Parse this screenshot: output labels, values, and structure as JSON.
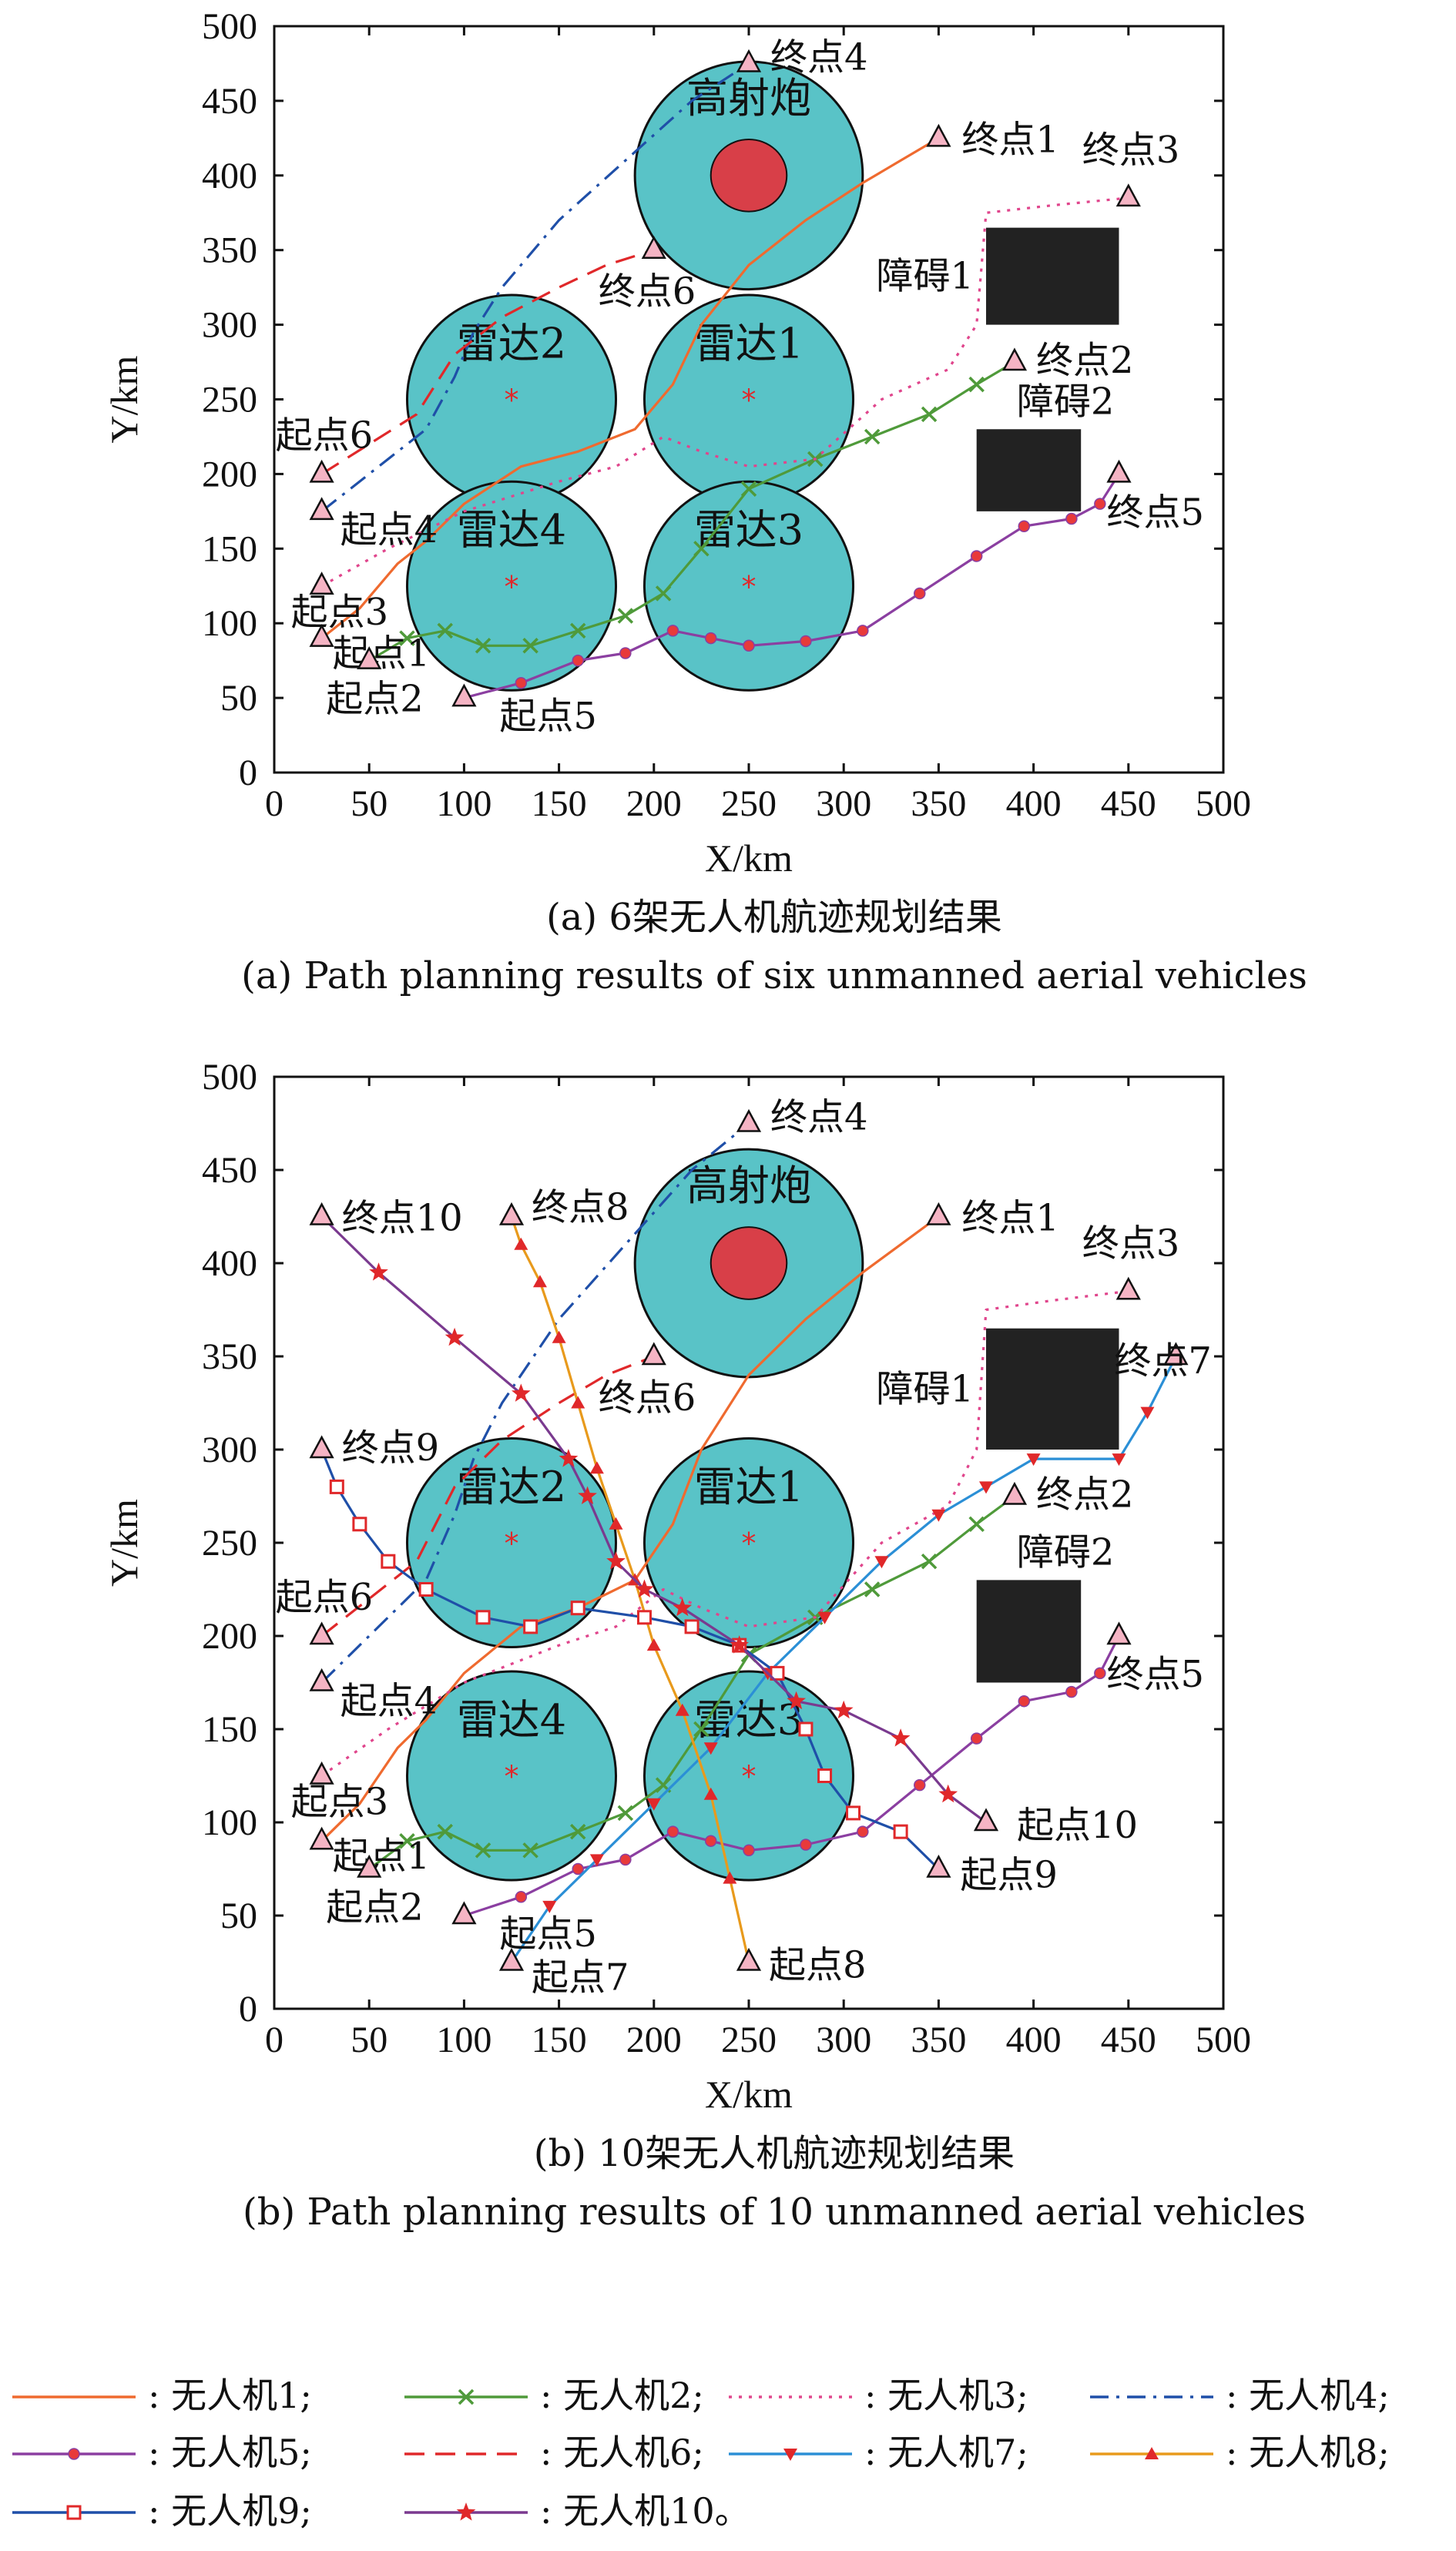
{
  "colors": {
    "zone_fill": "#59c3c7",
    "zone_stroke": "#111111",
    "aa_core": "#d83f48",
    "obstacle": "#222222",
    "marker_fill": "#f5b4c4"
  },
  "legend": [
    {
      "label": ": 无人机1;",
      "color": "#ef6a2f",
      "dash": "",
      "marker": "none"
    },
    {
      "label": ": 无人机2;",
      "color": "#4f9a3a",
      "dash": "",
      "marker": "x"
    },
    {
      "label": ": 无人机3;",
      "color": "#e0458c",
      "dash": "dot",
      "marker": "none"
    },
    {
      "label": ": 无人机4;",
      "color": "#1f4fa8",
      "dash": "dashdot",
      "marker": "none"
    },
    {
      "label": ": 无人机5;",
      "color": "#8b3fa1",
      "dash": "",
      "marker": "circle"
    },
    {
      "label": ": 无人机6;",
      "color": "#e0282a",
      "dash": "dash",
      "marker": "none"
    },
    {
      "label": ": 无人机7;",
      "color": "#2b8fd6",
      "dash": "",
      "marker": "tri-down"
    },
    {
      "label": ": 无人机8;",
      "color": "#e89a1c",
      "dash": "",
      "marker": "tri-up"
    },
    {
      "label": ": 无人机9;",
      "color": "#1f4fa8",
      "dash": "",
      "marker": "square"
    },
    {
      "label": ": 无人机10。",
      "color": "#7a3a8f",
      "dash": "",
      "marker": "star"
    }
  ],
  "chart_data": [
    {
      "type": "line",
      "xlabel": "X/km",
      "ylabel": "Y/km",
      "xlim": [
        0,
        500
      ],
      "ylim": [
        0,
        500
      ],
      "xticks": [
        0,
        50,
        100,
        150,
        200,
        250,
        300,
        350,
        400,
        450,
        500
      ],
      "yticks": [
        0,
        50,
        100,
        150,
        200,
        250,
        300,
        350,
        400,
        450,
        500
      ],
      "caption_cn": "(a) 6架无人机航迹规划结果",
      "caption_en": "(a) Path planning results of six unmanned aerial vehicles",
      "threat_zones": [
        {
          "label": "高射炮",
          "cx": 250,
          "cy": 400,
          "r": 60,
          "core_r": 20,
          "kind": "aa"
        },
        {
          "label": "雷达2",
          "cx": 125,
          "cy": 250,
          "r": 55,
          "kind": "radar"
        },
        {
          "label": "雷达1",
          "cx": 250,
          "cy": 250,
          "r": 55,
          "kind": "radar"
        },
        {
          "label": "雷达4",
          "cx": 125,
          "cy": 125,
          "r": 55,
          "kind": "radar"
        },
        {
          "label": "雷达3",
          "cx": 250,
          "cy": 125,
          "r": 55,
          "kind": "radar"
        }
      ],
      "obstacles": [
        {
          "label": "障碍1",
          "x0": 375,
          "x1": 445,
          "y0": 300,
          "y1": 365
        },
        {
          "label": "障碍2",
          "x0": 370,
          "x1": 425,
          "y0": 175,
          "y1": 230
        }
      ],
      "points": [
        {
          "label": "终点4",
          "x": 250,
          "y": 475
        },
        {
          "label": "终点1",
          "x": 350,
          "y": 425
        },
        {
          "label": "终点3",
          "x": 450,
          "y": 385
        },
        {
          "label": "终点6",
          "x": 200,
          "y": 350
        },
        {
          "label": "终点2",
          "x": 390,
          "y": 275
        },
        {
          "label": "终点5",
          "x": 445,
          "y": 200
        },
        {
          "label": "起点6",
          "x": 25,
          "y": 200
        },
        {
          "label": "起点4",
          "x": 25,
          "y": 175
        },
        {
          "label": "起点3",
          "x": 25,
          "y": 125
        },
        {
          "label": "起点1",
          "x": 25,
          "y": 90
        },
        {
          "label": "起点2",
          "x": 50,
          "y": 75
        },
        {
          "label": "起点5",
          "x": 100,
          "y": 50
        }
      ],
      "series": [
        {
          "name": "无人机1",
          "x": [
            25,
            45,
            65,
            80,
            100,
            130,
            160,
            190,
            210,
            225,
            250,
            280,
            310,
            330,
            350
          ],
          "y": [
            90,
            110,
            140,
            155,
            180,
            205,
            215,
            230,
            260,
            300,
            340,
            370,
            395,
            410,
            425
          ]
        },
        {
          "name": "无人机2",
          "x": [
            50,
            70,
            90,
            110,
            135,
            160,
            185,
            205,
            225,
            250,
            285,
            315,
            345,
            370,
            390
          ],
          "y": [
            75,
            90,
            95,
            85,
            85,
            95,
            105,
            120,
            150,
            190,
            210,
            225,
            240,
            260,
            275
          ]
        },
        {
          "name": "无人机3",
          "x": [
            25,
            60,
            100,
            150,
            180,
            205,
            225,
            250,
            285,
            320,
            355,
            370,
            375,
            410,
            450
          ],
          "y": [
            125,
            150,
            175,
            195,
            205,
            225,
            215,
            205,
            210,
            250,
            270,
            300,
            375,
            380,
            385
          ]
        },
        {
          "name": "无人机4",
          "x": [
            25,
            55,
            80,
            95,
            105,
            120,
            150,
            185,
            220,
            250
          ],
          "y": [
            175,
            205,
            230,
            265,
            295,
            325,
            370,
            410,
            450,
            475
          ]
        },
        {
          "name": "无人机5",
          "x": [
            100,
            130,
            160,
            185,
            210,
            230,
            250,
            280,
            310,
            340,
            370,
            395,
            420,
            435,
            445
          ],
          "y": [
            50,
            60,
            75,
            80,
            95,
            90,
            85,
            88,
            95,
            120,
            145,
            165,
            170,
            180,
            200
          ]
        },
        {
          "name": "无人机6",
          "x": [
            25,
            50,
            75,
            95,
            120,
            150,
            175,
            200
          ],
          "y": [
            200,
            220,
            240,
            280,
            305,
            325,
            340,
            350
          ]
        }
      ]
    },
    {
      "type": "line",
      "xlabel": "X/km",
      "ylabel": "Y/km",
      "xlim": [
        0,
        500
      ],
      "ylim": [
        0,
        500
      ],
      "xticks": [
        0,
        50,
        100,
        150,
        200,
        250,
        300,
        350,
        400,
        450,
        500
      ],
      "yticks": [
        0,
        50,
        100,
        150,
        200,
        250,
        300,
        350,
        400,
        450,
        500
      ],
      "caption_cn": "(b) 10架无人机航迹规划结果",
      "caption_en": "(b) Path planning results of 10 unmanned aerial vehicles",
      "threat_zones": [
        {
          "label": "高射炮",
          "cx": 250,
          "cy": 400,
          "r": 60,
          "core_r": 20,
          "kind": "aa"
        },
        {
          "label": "雷达2",
          "cx": 125,
          "cy": 250,
          "r": 55,
          "kind": "radar"
        },
        {
          "label": "雷达1",
          "cx": 250,
          "cy": 250,
          "r": 55,
          "kind": "radar"
        },
        {
          "label": "雷达4",
          "cx": 125,
          "cy": 125,
          "r": 55,
          "kind": "radar"
        },
        {
          "label": "雷达3",
          "cx": 250,
          "cy": 125,
          "r": 55,
          "kind": "radar"
        }
      ],
      "obstacles": [
        {
          "label": "障碍1",
          "x0": 375,
          "x1": 445,
          "y0": 300,
          "y1": 365
        },
        {
          "label": "障碍2",
          "x0": 370,
          "x1": 425,
          "y0": 175,
          "y1": 230
        }
      ],
      "points": [
        {
          "label": "终点4",
          "x": 250,
          "y": 475
        },
        {
          "label": "终点10",
          "x": 25,
          "y": 425
        },
        {
          "label": "终点8",
          "x": 125,
          "y": 425
        },
        {
          "label": "终点1",
          "x": 350,
          "y": 425
        },
        {
          "label": "终点3",
          "x": 450,
          "y": 385
        },
        {
          "label": "终点7",
          "x": 475,
          "y": 350
        },
        {
          "label": "终点6",
          "x": 200,
          "y": 350
        },
        {
          "label": "终点9",
          "x": 25,
          "y": 300
        },
        {
          "label": "终点2",
          "x": 390,
          "y": 275
        },
        {
          "label": "终点5",
          "x": 445,
          "y": 200
        },
        {
          "label": "起点6",
          "x": 25,
          "y": 200
        },
        {
          "label": "起点4",
          "x": 25,
          "y": 175
        },
        {
          "label": "起点3",
          "x": 25,
          "y": 125
        },
        {
          "label": "起点1",
          "x": 25,
          "y": 90
        },
        {
          "label": "起点2",
          "x": 50,
          "y": 75
        },
        {
          "label": "起点5",
          "x": 100,
          "y": 50
        },
        {
          "label": "起点7",
          "x": 125,
          "y": 25
        },
        {
          "label": "起点8",
          "x": 250,
          "y": 25
        },
        {
          "label": "起点9",
          "x": 350,
          "y": 75
        },
        {
          "label": "起点10",
          "x": 375,
          "y": 100
        }
      ],
      "series": [
        {
          "name": "无人机1",
          "x": [
            25,
            45,
            65,
            80,
            100,
            130,
            160,
            190,
            210,
            225,
            250,
            280,
            310,
            330,
            350
          ],
          "y": [
            90,
            110,
            140,
            155,
            180,
            205,
            215,
            230,
            260,
            300,
            340,
            370,
            395,
            410,
            425
          ]
        },
        {
          "name": "无人机2",
          "x": [
            50,
            70,
            90,
            110,
            135,
            160,
            185,
            205,
            225,
            250,
            285,
            315,
            345,
            370,
            390
          ],
          "y": [
            75,
            90,
            95,
            85,
            85,
            95,
            105,
            120,
            150,
            190,
            210,
            225,
            240,
            260,
            275
          ]
        },
        {
          "name": "无人机3",
          "x": [
            25,
            60,
            100,
            150,
            180,
            205,
            225,
            250,
            285,
            320,
            355,
            370,
            375,
            410,
            450
          ],
          "y": [
            125,
            150,
            175,
            195,
            205,
            225,
            215,
            205,
            210,
            250,
            270,
            300,
            375,
            380,
            385
          ]
        },
        {
          "name": "无人机4",
          "x": [
            25,
            55,
            80,
            95,
            105,
            120,
            150,
            185,
            220,
            250
          ],
          "y": [
            175,
            205,
            230,
            265,
            295,
            325,
            370,
            410,
            450,
            475
          ]
        },
        {
          "name": "无人机5",
          "x": [
            100,
            130,
            160,
            185,
            210,
            230,
            250,
            280,
            310,
            340,
            370,
            395,
            420,
            435,
            445
          ],
          "y": [
            50,
            60,
            75,
            80,
            95,
            90,
            85,
            88,
            95,
            120,
            145,
            165,
            170,
            180,
            200
          ]
        },
        {
          "name": "无人机6",
          "x": [
            25,
            50,
            75,
            95,
            120,
            150,
            175,
            200
          ],
          "y": [
            200,
            220,
            240,
            280,
            305,
            325,
            340,
            350
          ]
        },
        {
          "name": "无人机7",
          "x": [
            125,
            145,
            170,
            200,
            230,
            260,
            290,
            320,
            350,
            375,
            400,
            445,
            460,
            475
          ],
          "y": [
            25,
            55,
            80,
            110,
            140,
            180,
            210,
            240,
            265,
            280,
            295,
            295,
            320,
            350
          ]
        },
        {
          "name": "无人机8",
          "x": [
            250,
            240,
            230,
            215,
            200,
            190,
            180,
            170,
            160,
            150,
            140,
            130,
            125
          ],
          "y": [
            25,
            70,
            115,
            160,
            195,
            230,
            260,
            290,
            325,
            360,
            390,
            410,
            425
          ]
        },
        {
          "name": "无人机9",
          "x": [
            350,
            330,
            305,
            290,
            280,
            265,
            245,
            220,
            195,
            160,
            135,
            110,
            80,
            60,
            45,
            33,
            25
          ],
          "y": [
            75,
            95,
            105,
            125,
            150,
            180,
            195,
            205,
            210,
            215,
            205,
            210,
            225,
            240,
            260,
            280,
            300
          ]
        },
        {
          "name": "无人机10",
          "x": [
            375,
            355,
            330,
            300,
            275,
            245,
            215,
            195,
            180,
            165,
            155,
            130,
            95,
            55,
            25
          ],
          "y": [
            100,
            115,
            145,
            160,
            165,
            195,
            215,
            225,
            240,
            275,
            295,
            330,
            360,
            395,
            425
          ]
        }
      ]
    }
  ]
}
